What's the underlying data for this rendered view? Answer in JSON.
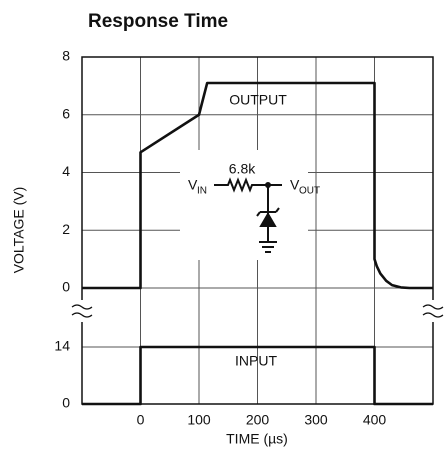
{
  "chart_data": [
    {
      "type": "line",
      "title": "Response Time",
      "y_label": "VOLTAGE (V)",
      "xlim": [
        -100,
        500
      ],
      "xticks": [
        0,
        100,
        200,
        300,
        400
      ],
      "ylim": [
        0,
        8
      ],
      "yticks": [
        0,
        2,
        4,
        6,
        8
      ],
      "grid": true,
      "color": "#111111",
      "x": [
        -100,
        0,
        0,
        100,
        114,
        400,
        400,
        404,
        410,
        420,
        430,
        445,
        460,
        500
      ],
      "values": [
        0,
        0,
        4.7,
        6,
        7.1,
        7.1,
        1,
        0.75,
        0.5,
        0.25,
        0.1,
        0.02,
        0,
        0
      ],
      "annotations": [
        "OUTPUT"
      ],
      "circuit": {
        "resistor": "6.8k",
        "vin": [
          "V",
          "IN"
        ],
        "vout": [
          "V",
          "OUT"
        ]
      }
    },
    {
      "type": "line",
      "x_label": "TIME (µs)",
      "xlim": [
        -100,
        500
      ],
      "xticks": [
        0,
        100,
        200,
        300,
        400
      ],
      "ylim": [
        0,
        14
      ],
      "yticks": [
        0,
        14
      ],
      "grid": true,
      "color": "#111111",
      "x": [
        -100,
        0,
        0,
        400,
        400,
        500
      ],
      "values": [
        0,
        0,
        14,
        14,
        0,
        0
      ],
      "annotations": [
        "INPUT"
      ]
    }
  ]
}
